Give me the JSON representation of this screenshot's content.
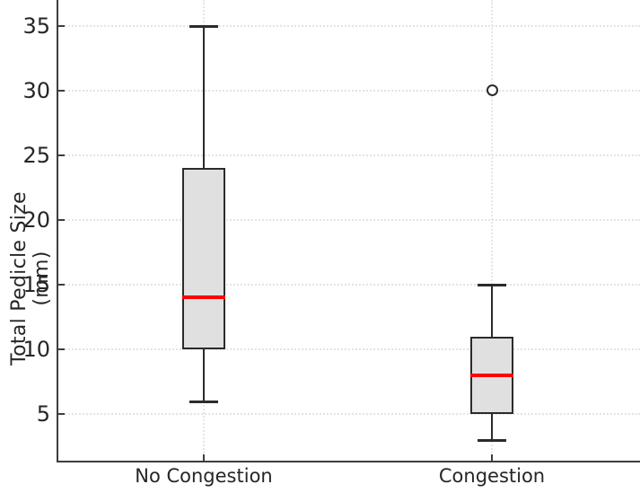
{
  "chart_data": {
    "type": "boxplot",
    "title": "",
    "xlabel": "",
    "ylabel": "Total Pedicle Size (mm)",
    "categories": [
      "No Congestion",
      "Congestion"
    ],
    "series": [
      {
        "name": "No Congestion",
        "whisker_low": 6,
        "q1": 10,
        "median": 14,
        "q3": 24,
        "whisker_high": 35,
        "outliers": []
      },
      {
        "name": "Congestion",
        "whisker_low": 3,
        "q1": 5,
        "median": 8,
        "q3": 11,
        "whisker_high": 15,
        "outliers": [
          30
        ]
      }
    ],
    "yticks": [
      5,
      10,
      15,
      20,
      25,
      30,
      35
    ],
    "ylim": [
      1.4,
      37.0
    ],
    "grid": "dotted-both-axes",
    "legend": "none",
    "colors": {
      "median": "#ff0000",
      "box_fill": "#e0e0e0",
      "box_edge": "#2b2b2b",
      "whisker": "#2b2b2b",
      "grid": "#e4e4e4",
      "spine": "#3d3d3d",
      "text": "#262626",
      "background": "#ffffff"
    }
  }
}
